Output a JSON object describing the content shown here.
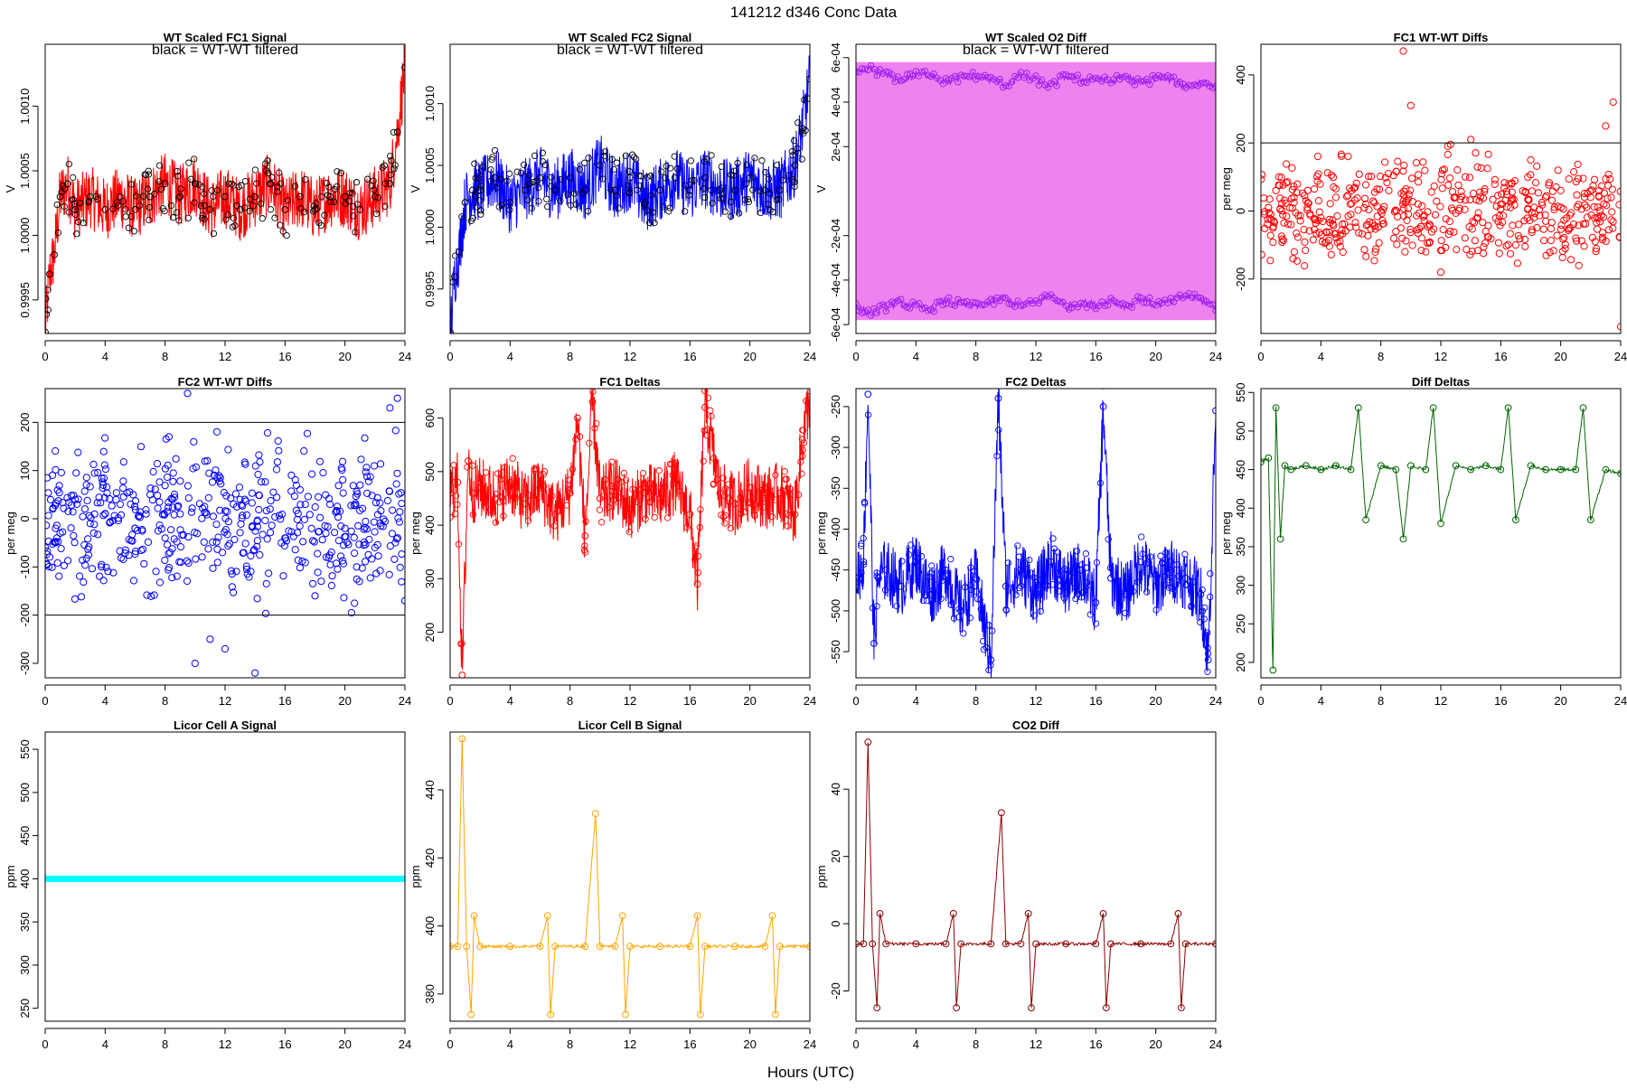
{
  "page_title": "141212   d346   Conc Data",
  "footer_xlabel": "Hours (UTC)",
  "overlay_note": "black = WT-WT filtered",
  "chart_data": [
    {
      "id": "fc1-signal",
      "type": "line",
      "title": "WT Scaled FC1 Signal",
      "subtitle": "black = WT-WT filtered",
      "ylabel": "V",
      "color": "#ff0000",
      "overlay_color": "#000000",
      "xlim": [
        0,
        24
      ],
      "ylim": [
        0.99924,
        1.00148
      ],
      "xticks": [
        0,
        4,
        8,
        12,
        16,
        20,
        24
      ],
      "yticks": [
        0.9995,
        1.0,
        1.0005,
        1.001
      ],
      "ytick_labels": [
        "0.9995",
        "1.0000",
        "1.0005",
        "1.0010"
      ],
      "ref_lines": [],
      "series": [
        {
          "x": [
            0,
            0.3,
            0.6,
            1,
            1.5,
            2,
            3,
            4,
            5,
            6,
            7,
            8,
            9,
            10,
            11,
            12,
            13,
            14,
            15,
            16,
            17,
            18,
            19,
            20,
            21,
            22,
            23,
            23.5,
            24
          ],
          "y": [
            0.99925,
            0.9997,
            0.99985,
            1.0003,
            1.0004,
            1.0002,
            1.0003,
            1.0002,
            1.0003,
            1.0002,
            1.0003,
            1.0004,
            1.0003,
            1.0004,
            1.0002,
            1.0003,
            1.0002,
            1.0003,
            1.0004,
            1.0002,
            1.0003,
            1.0002,
            1.0003,
            1.0003,
            1.0002,
            1.0003,
            1.0004,
            1.0008,
            1.0013
          ]
        }
      ]
    },
    {
      "id": "fc2-signal",
      "type": "line",
      "title": "WT Scaled FC2 Signal",
      "subtitle": "black = WT-WT filtered",
      "ylabel": "V",
      "color": "#0000ff",
      "overlay_color": "#000000",
      "xlim": [
        0,
        24
      ],
      "ylim": [
        0.99914,
        1.00148
      ],
      "xticks": [
        0,
        4,
        8,
        12,
        16,
        20,
        24
      ],
      "yticks": [
        0.9995,
        1.0,
        1.0005,
        1.001
      ],
      "ytick_labels": [
        "0.9995",
        "1.0000",
        "1.0005",
        "1.0010"
      ],
      "ref_lines": [],
      "series": [
        {
          "x": [
            0,
            0.3,
            0.6,
            1,
            1.5,
            2,
            3,
            4,
            5,
            6,
            7,
            8,
            9,
            10,
            11,
            12,
            13,
            14,
            15,
            16,
            17,
            18,
            19,
            20,
            21,
            22,
            23,
            23.5,
            24
          ],
          "y": [
            0.99915,
            0.9996,
            0.9998,
            1.0002,
            1.0003,
            1.0003,
            1.0004,
            1.0002,
            1.0003,
            1.0004,
            1.0003,
            1.0004,
            1.0003,
            1.0005,
            1.0003,
            1.0004,
            1.0002,
            1.0003,
            1.0004,
            1.0003,
            1.0004,
            1.0003,
            1.0003,
            1.0004,
            1.0003,
            1.0003,
            1.0005,
            1.0008,
            1.0012
          ]
        }
      ]
    },
    {
      "id": "o2-diff",
      "type": "line",
      "title": "WT Scaled O2 Diff",
      "subtitle": "black = WT-WT filtered",
      "ylabel": "V",
      "color": "#ee82ee",
      "overlay_color": "#a020f0",
      "xlim": [
        0,
        24
      ],
      "ylim": [
        -0.00064,
        0.00066
      ],
      "xticks": [
        0,
        4,
        8,
        12,
        16,
        20,
        24
      ],
      "yticks": [
        -0.0006,
        -0.0004,
        -0.0002,
        0.0002,
        0.0004,
        0.0006
      ],
      "ytick_labels": [
        "-6e-04",
        "-4e-04",
        "-2e-04",
        "2e-04",
        "4e-04",
        "6e-04"
      ],
      "ref_lines": [],
      "series": [
        {
          "x": [
            0,
            1,
            2,
            3,
            4,
            5,
            6,
            7,
            8,
            9,
            10,
            11,
            12,
            13,
            14,
            15,
            16,
            17,
            18,
            19,
            20,
            21,
            22,
            23,
            24
          ],
          "y": [
            0.00052,
            0.00055,
            0.00052,
            0.0005,
            0.00052,
            0.00053,
            0.00049,
            0.00051,
            0.00052,
            0.0005,
            0.00048,
            0.00052,
            0.0005,
            0.00047,
            0.00052,
            0.0005,
            0.00051,
            0.00049,
            0.00052,
            0.00048,
            0.00051,
            0.0005,
            0.00047,
            0.00049,
            0.00048
          ]
        },
        {
          "x": [
            0,
            1,
            2,
            3,
            4,
            5,
            6,
            7,
            8,
            9,
            10,
            11,
            12,
            13,
            14,
            15,
            16,
            17,
            18,
            19,
            20,
            21,
            22,
            23,
            24
          ],
          "y": [
            -0.00052,
            -0.00055,
            -0.00052,
            -0.0005,
            -0.00052,
            -0.00053,
            -0.00049,
            -0.00051,
            -0.00052,
            -0.0005,
            -0.00048,
            -0.00052,
            -0.0005,
            -0.00047,
            -0.00052,
            -0.0005,
            -0.00051,
            -0.00049,
            -0.00052,
            -0.00048,
            -0.00051,
            -0.0005,
            -0.00047,
            -0.00049,
            -0.00052
          ]
        }
      ]
    },
    {
      "id": "fc1-wtwt",
      "type": "scatter",
      "title": "FC1 WT-WT Diffs",
      "subtitle": "",
      "ylabel": "per meg",
      "color": "#ff0000",
      "xlim": [
        0,
        24
      ],
      "ylim": [
        -360,
        490
      ],
      "xticks": [
        0,
        4,
        8,
        12,
        16,
        20,
        24
      ],
      "yticks": [
        -200,
        0,
        200,
        400
      ],
      "ytick_labels": [
        "-200",
        "0",
        "200",
        "400"
      ],
      "ref_lines": [
        200,
        -200
      ],
      "series": [
        {
          "x": [
            0.5,
            1,
            2,
            3,
            4,
            5,
            6,
            7,
            8,
            9,
            9.5,
            10,
            11,
            12,
            13,
            14,
            15,
            16,
            17,
            18,
            19,
            20,
            21,
            22,
            23,
            23.5,
            24
          ],
          "y": [
            10,
            60,
            -40,
            30,
            -20,
            40,
            -10,
            20,
            0,
            -60,
            470,
            310,
            -120,
            -180,
            40,
            210,
            -60,
            20,
            -100,
            150,
            -30,
            60,
            -80,
            40,
            250,
            320,
            -340
          ]
        }
      ]
    },
    {
      "id": "fc2-wtwt",
      "type": "scatter",
      "title": "FC2 WT-WT Diffs",
      "subtitle": "",
      "ylabel": "per meg",
      "color": "#0000ff",
      "xlim": [
        0,
        24
      ],
      "ylim": [
        -330,
        270
      ],
      "xticks": [
        0,
        4,
        8,
        12,
        16,
        20,
        24
      ],
      "yticks": [
        -300,
        -200,
        -100,
        0,
        100,
        200
      ],
      "ytick_labels": [
        "-300",
        "-200",
        "-100",
        "0",
        "100",
        "200"
      ],
      "ref_lines": [
        200,
        -200
      ],
      "series": [
        {
          "x": [
            0.5,
            1,
            2,
            3,
            4,
            5,
            6,
            7,
            8,
            9,
            9.5,
            10,
            11,
            12,
            13,
            14,
            15,
            16,
            17,
            18,
            19,
            20,
            21,
            22,
            23,
            23.5,
            24
          ],
          "y": [
            20,
            -30,
            40,
            -10,
            10,
            30,
            -20,
            50,
            -40,
            10,
            260,
            -300,
            -250,
            -270,
            40,
            -320,
            20,
            -40,
            60,
            -160,
            30,
            -20,
            70,
            -60,
            230,
            250,
            -170
          ]
        }
      ]
    },
    {
      "id": "fc1-deltas",
      "type": "line",
      "title": "FC1 Deltas",
      "subtitle": "",
      "ylabel": "per meg",
      "color": "#ff0000",
      "xlim": [
        0,
        24
      ],
      "ylim": [
        115,
        655
      ],
      "xticks": [
        0,
        4,
        8,
        12,
        16,
        20,
        24
      ],
      "yticks": [
        200,
        300,
        400,
        500,
        600
      ],
      "ytick_labels": [
        "200",
        "300",
        "400",
        "500",
        "600"
      ],
      "ref_lines": [],
      "series": [
        {
          "x": [
            0,
            0.5,
            0.8,
            1.2,
            1.5,
            2,
            3,
            4,
            5,
            6,
            7,
            8,
            8.5,
            9,
            9.5,
            10,
            11,
            12,
            13,
            14,
            15,
            16,
            16.5,
            17,
            18,
            19,
            20,
            21,
            22,
            23,
            23.5,
            24
          ],
          "y": [
            460,
            480,
            120,
            520,
            460,
            470,
            450,
            480,
            440,
            470,
            420,
            460,
            600,
            380,
            630,
            450,
            470,
            430,
            460,
            450,
            480,
            420,
            290,
            620,
            460,
            440,
            470,
            450,
            460,
            420,
            560,
            640
          ]
        }
      ]
    },
    {
      "id": "fc2-deltas",
      "type": "line",
      "title": "FC2 Deltas",
      "subtitle": "",
      "ylabel": "per meg",
      "color": "#0000ff",
      "xlim": [
        0,
        24
      ],
      "ylim": [
        -582,
        -228
      ],
      "xticks": [
        0,
        4,
        8,
        12,
        16,
        20,
        24
      ],
      "yticks": [
        -550,
        -500,
        -450,
        -400,
        -350,
        -300,
        -250
      ],
      "ytick_labels": [
        "-550",
        "-500",
        "-450",
        "-400",
        "-350",
        "-300",
        "-250"
      ],
      "ref_lines": [],
      "series": [
        {
          "x": [
            0,
            0.5,
            0.8,
            1.2,
            1.5,
            2,
            3,
            4,
            5,
            6,
            7,
            8,
            9,
            9.5,
            10,
            11,
            12,
            13,
            14,
            15,
            16,
            16.5,
            17,
            18,
            19,
            20,
            21,
            22,
            23,
            23.5,
            24
          ],
          "y": [
            -460,
            -440,
            -235,
            -540,
            -460,
            -450,
            -470,
            -440,
            -480,
            -450,
            -500,
            -460,
            -560,
            -240,
            -470,
            -450,
            -480,
            -440,
            -470,
            -450,
            -490,
            -250,
            -460,
            -480,
            -440,
            -470,
            -450,
            -460,
            -480,
            -560,
            -255
          ]
        }
      ]
    },
    {
      "id": "diff-deltas",
      "type": "line",
      "title": "Diff Deltas",
      "subtitle": "",
      "ylabel": "per meg",
      "color": "#006400",
      "xlim": [
        0,
        24
      ],
      "ylim": [
        180,
        555
      ],
      "xticks": [
        0,
        4,
        8,
        12,
        16,
        20,
        24
      ],
      "yticks": [
        200,
        250,
        300,
        350,
        400,
        450,
        500,
        550
      ],
      "ytick_labels": [
        "200",
        "250",
        "300",
        "350",
        "400",
        "450",
        "500",
        "550"
      ],
      "ref_lines": [],
      "series": [
        {
          "x": [
            0,
            0.5,
            0.8,
            1,
            1.3,
            1.6,
            2,
            3,
            4,
            5,
            6,
            6.5,
            7,
            8,
            9,
            9.5,
            10,
            11,
            11.5,
            12,
            13,
            14,
            15,
            16,
            16.5,
            17,
            18,
            19,
            20,
            21,
            21.5,
            22,
            23,
            24
          ],
          "y": [
            460,
            465,
            190,
            530,
            360,
            455,
            450,
            455,
            450,
            455,
            450,
            530,
            385,
            455,
            450,
            360,
            455,
            450,
            530,
            380,
            455,
            450,
            455,
            450,
            530,
            385,
            455,
            450,
            450,
            450,
            530,
            385,
            450,
            445
          ]
        }
      ]
    },
    {
      "id": "licor-a",
      "type": "line",
      "title": "Licor Cell A Signal",
      "subtitle": "",
      "ylabel": "ppm",
      "color": "#00ffff",
      "xlim": [
        0,
        24
      ],
      "ylim": [
        235,
        570
      ],
      "xticks": [
        0,
        4,
        8,
        12,
        16,
        20,
        24
      ],
      "yticks": [
        250,
        300,
        350,
        400,
        450,
        500,
        550
      ],
      "ytick_labels": [
        "250",
        "300",
        "350",
        "400",
        "450",
        "500",
        "550"
      ],
      "ref_lines": [],
      "series": [
        {
          "x": [
            0,
            4,
            8,
            12,
            16,
            20,
            24
          ],
          "y": [
            400,
            400,
            400,
            400,
            400,
            400,
            400
          ]
        }
      ]
    },
    {
      "id": "licor-b",
      "type": "line",
      "title": "Licor Cell B Signal",
      "subtitle": "",
      "ylabel": "ppm",
      "color": "#ffa500",
      "xlim": [
        0,
        24
      ],
      "ylim": [
        372,
        457
      ],
      "xticks": [
        0,
        4,
        8,
        12,
        16,
        20,
        24
      ],
      "yticks": [
        380,
        400,
        420,
        440
      ],
      "ytick_labels": [
        "380",
        "400",
        "420",
        "440"
      ],
      "ref_lines": [],
      "series": [
        {
          "x": [
            0,
            0.5,
            0.8,
            1.1,
            1.4,
            1.6,
            2,
            4,
            6,
            6.5,
            6.7,
            7,
            9,
            9.7,
            10,
            11,
            11.5,
            11.7,
            12,
            14,
            16,
            16.5,
            16.7,
            17,
            19,
            21,
            21.5,
            21.7,
            22,
            24
          ],
          "y": [
            394,
            394,
            455,
            394,
            374,
            403,
            394,
            394,
            394,
            403,
            374,
            394,
            394,
            433,
            394,
            394,
            403,
            374,
            394,
            394,
            394,
            403,
            374,
            394,
            394,
            394,
            403,
            374,
            394,
            394
          ]
        }
      ]
    },
    {
      "id": "co2-diff",
      "type": "line",
      "title": "CO2 Diff",
      "subtitle": "",
      "ylabel": "ppm",
      "color": "#8b0000",
      "xlim": [
        0,
        24
      ],
      "ylim": [
        -29,
        57
      ],
      "xticks": [
        0,
        4,
        8,
        12,
        16,
        20,
        24
      ],
      "yticks": [
        -20,
        0,
        20,
        40
      ],
      "ytick_labels": [
        "-20",
        "0",
        "20",
        "40"
      ],
      "ref_lines": [],
      "series": [
        {
          "x": [
            0,
            0.5,
            0.8,
            1.1,
            1.4,
            1.6,
            2,
            4,
            6,
            6.5,
            6.7,
            7,
            9,
            9.7,
            10,
            11,
            11.5,
            11.7,
            12,
            14,
            16,
            16.5,
            16.7,
            17,
            19,
            21,
            21.5,
            21.7,
            22,
            24
          ],
          "y": [
            -6,
            -6,
            54,
            -6,
            -25,
            3,
            -6,
            -6,
            -6,
            3,
            -25,
            -6,
            -6,
            33,
            -6,
            -6,
            3,
            -25,
            -6,
            -6,
            -6,
            3,
            -25,
            -6,
            -6,
            -6,
            3,
            -25,
            -6,
            -6
          ]
        }
      ]
    }
  ]
}
